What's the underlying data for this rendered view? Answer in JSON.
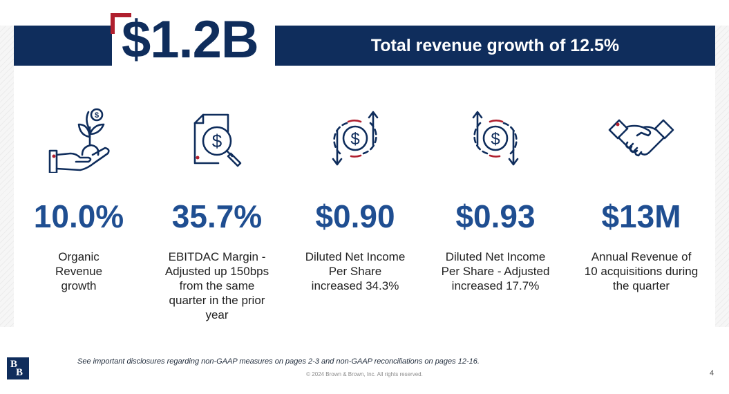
{
  "header": {
    "big_value": "$1.2B",
    "banner_text": "Total revenue growth of 12.5%"
  },
  "metrics": [
    {
      "icon": "hand-plant-dollar-icon",
      "value": "10.0%",
      "description": "Organic\nRevenue\ngrowth"
    },
    {
      "icon": "document-magnifier-dollar-icon",
      "value": "35.7%",
      "description": "EBITDAC Margin -\nAdjusted up 150bps\nfrom the same\nquarter in the prior\nyear"
    },
    {
      "icon": "dollar-cycle-arrows-icon",
      "value": "$0.90",
      "description": "Diluted Net Income\nPer Share\nincreased 34.3%"
    },
    {
      "icon": "dollar-cycle-arrows-icon",
      "value": "$0.93",
      "description": "Diluted Net Income\nPer Share - Adjusted\nincreased 17.7%"
    },
    {
      "icon": "handshake-icon",
      "value": "$13M",
      "description": "Annual Revenue of\n10 acquisitions during\nthe quarter"
    }
  ],
  "footer": {
    "disclosure": "See important disclosures regarding non-GAAP measures on pages 2-3 and non-GAAP reconciliations on pages 12-16.",
    "copyright": "© 2024 Brown & Brown, Inc. All rights reserved.",
    "page_number": "4",
    "logo_letters": [
      "B",
      "B"
    ]
  },
  "colors": {
    "navy": "#0f2d5c",
    "accent_red": "#b01f2e",
    "value_blue": "#1f4e91"
  }
}
